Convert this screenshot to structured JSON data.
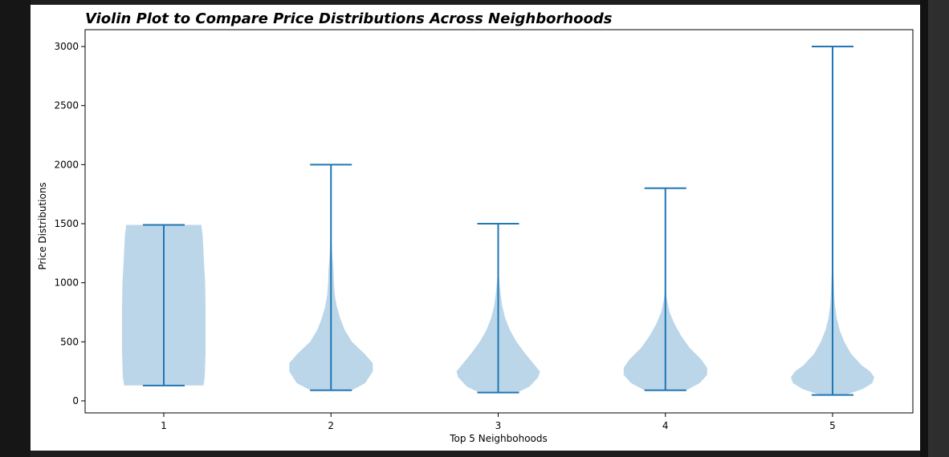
{
  "chart_data": {
    "type": "violin",
    "title": "Violin Plot to Compare Price Distributions Across Neighborhoods",
    "xlabel": "Top 5 Neighbohoods",
    "ylabel": "Price Distributions",
    "categories": [
      "1",
      "2",
      "3",
      "4",
      "5"
    ],
    "ylim": [
      -100,
      3150
    ],
    "yticks": [
      0,
      500,
      1000,
      1500,
      2000,
      2500,
      3000
    ],
    "grid": false,
    "colors": {
      "body": "#bcd6e9",
      "lines": "#1f77b4"
    },
    "violins": [
      {
        "name": "1",
        "min": 130,
        "max": 1490,
        "density": [
          [
            130,
            0.95
          ],
          [
            200,
            0.98
          ],
          [
            400,
            1.0
          ],
          [
            600,
            1.0
          ],
          [
            800,
            1.0
          ],
          [
            1000,
            0.99
          ],
          [
            1200,
            0.96
          ],
          [
            1400,
            0.93
          ],
          [
            1490,
            0.9
          ]
        ]
      },
      {
        "name": "2",
        "min": 90,
        "max": 2000,
        "density": [
          [
            90,
            0.5
          ],
          [
            150,
            0.82
          ],
          [
            250,
            1.0
          ],
          [
            320,
            1.0
          ],
          [
            400,
            0.8
          ],
          [
            500,
            0.5
          ],
          [
            600,
            0.33
          ],
          [
            700,
            0.22
          ],
          [
            800,
            0.14
          ],
          [
            900,
            0.09
          ],
          [
            1000,
            0.07
          ],
          [
            1100,
            0.06
          ],
          [
            1200,
            0.04
          ],
          [
            1300,
            0.02
          ],
          [
            1400,
            0.01
          ],
          [
            1500,
            0.004
          ],
          [
            2000,
            0.0
          ]
        ]
      },
      {
        "name": "3",
        "min": 70,
        "max": 1500,
        "density": [
          [
            70,
            0.45
          ],
          [
            120,
            0.75
          ],
          [
            200,
            0.96
          ],
          [
            250,
            1.0
          ],
          [
            300,
            0.88
          ],
          [
            400,
            0.65
          ],
          [
            500,
            0.44
          ],
          [
            600,
            0.28
          ],
          [
            700,
            0.17
          ],
          [
            800,
            0.1
          ],
          [
            900,
            0.06
          ],
          [
            1000,
            0.03
          ],
          [
            1100,
            0.01
          ],
          [
            1200,
            0.005
          ],
          [
            1500,
            0.0
          ]
        ]
      },
      {
        "name": "4",
        "min": 90,
        "max": 1800,
        "density": [
          [
            90,
            0.5
          ],
          [
            150,
            0.82
          ],
          [
            220,
            1.0
          ],
          [
            280,
            1.0
          ],
          [
            350,
            0.86
          ],
          [
            450,
            0.58
          ],
          [
            550,
            0.38
          ],
          [
            650,
            0.22
          ],
          [
            750,
            0.1
          ],
          [
            850,
            0.04
          ],
          [
            900,
            0.02
          ],
          [
            1000,
            0.01
          ],
          [
            1100,
            0.005
          ],
          [
            1800,
            0.0
          ]
        ]
      },
      {
        "name": "5",
        "min": 50,
        "max": 3000,
        "density": [
          [
            50,
            0.3
          ],
          [
            100,
            0.72
          ],
          [
            150,
            0.95
          ],
          [
            200,
            1.0
          ],
          [
            250,
            0.9
          ],
          [
            300,
            0.7
          ],
          [
            400,
            0.44
          ],
          [
            500,
            0.28
          ],
          [
            600,
            0.17
          ],
          [
            700,
            0.1
          ],
          [
            800,
            0.06
          ],
          [
            900,
            0.04
          ],
          [
            1000,
            0.03
          ],
          [
            1100,
            0.02
          ],
          [
            1200,
            0.01
          ],
          [
            1300,
            0.005
          ],
          [
            3000,
            0.0
          ]
        ]
      }
    ]
  }
}
